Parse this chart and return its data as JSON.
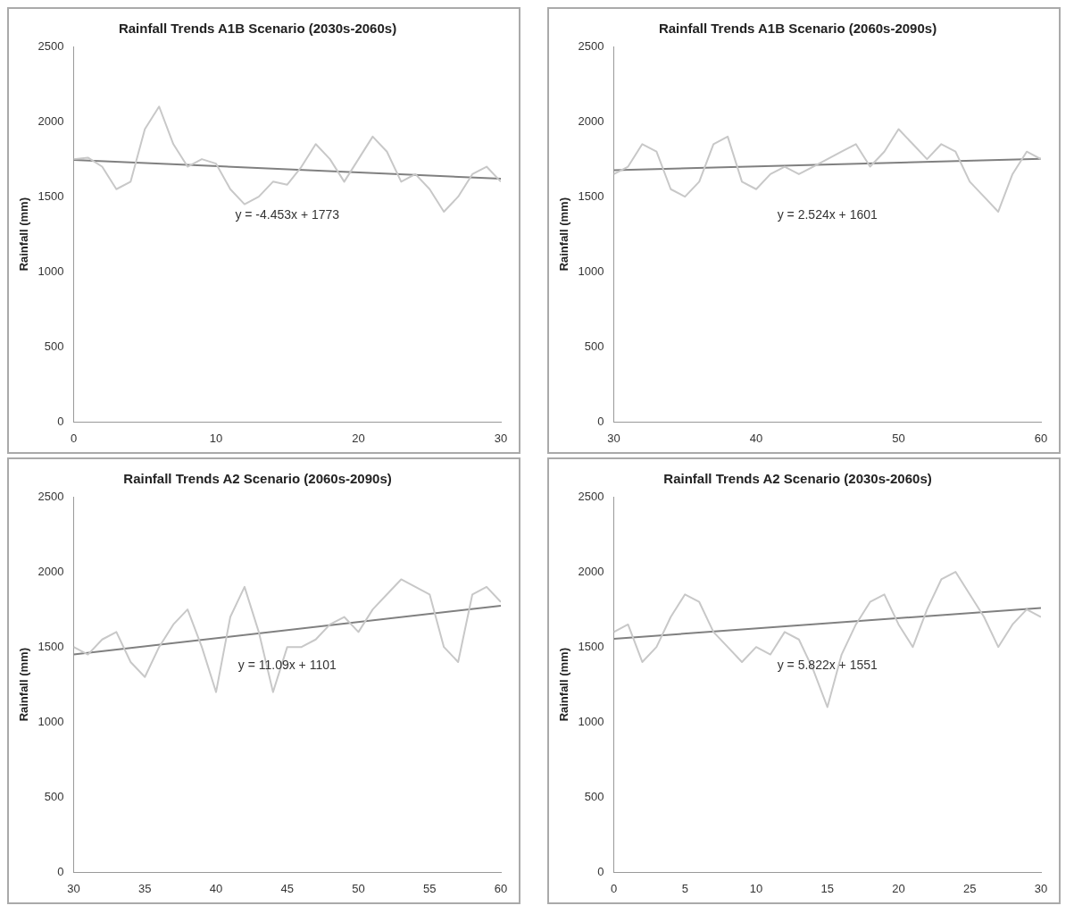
{
  "chart_data": [
    {
      "type": "line",
      "title": "Rainfall Trends A1B Scenario (2030s-2060s)",
      "ylabel": "Rainfall (mm)",
      "x": [
        0,
        1,
        2,
        3,
        4,
        5,
        6,
        7,
        8,
        9,
        10,
        11,
        12,
        13,
        14,
        15,
        16,
        17,
        18,
        19,
        20,
        21,
        22,
        23,
        24,
        25,
        26,
        27,
        28,
        29,
        30
      ],
      "series": [
        {
          "color": "#c8c8c8",
          "values": [
            1750,
            1760,
            1700,
            1550,
            1600,
            1950,
            2100,
            1850,
            1700,
            1750,
            1720,
            1550,
            1450,
            1500,
            1600,
            1580,
            1700,
            1850,
            1750,
            1600,
            1750,
            1900,
            1800,
            1600,
            1650,
            1550,
            1400,
            1500,
            1650,
            1700,
            1600
          ]
        },
        {
          "color": "#808080",
          "x": [
            0,
            30
          ],
          "values": [
            1745,
            1620
          ]
        }
      ],
      "xlim": [
        0,
        30
      ],
      "xticks": [
        0,
        10,
        20,
        30
      ],
      "ylim": [
        0,
        2500
      ],
      "yticks": [
        0,
        500,
        1000,
        1500,
        2000,
        2500
      ],
      "grid": false,
      "legend": false,
      "marker": "none",
      "annotations": [
        "y = -4.453x + 1773"
      ]
    },
    {
      "type": "line",
      "title": "Rainfall Trends A1B Scenario (2060s-2090s)",
      "ylabel": "Rainfall (mm)",
      "x": [
        30,
        31,
        32,
        33,
        34,
        35,
        36,
        37,
        38,
        39,
        40,
        41,
        42,
        43,
        44,
        45,
        46,
        47,
        48,
        49,
        50,
        51,
        52,
        53,
        54,
        55,
        56,
        57,
        58,
        59,
        60
      ],
      "series": [
        {
          "color": "#c8c8c8",
          "values": [
            1650,
            1700,
            1850,
            1800,
            1550,
            1500,
            1600,
            1850,
            1900,
            1600,
            1550,
            1650,
            1700,
            1650,
            1700,
            1750,
            1800,
            1850,
            1700,
            1800,
            1950,
            1850,
            1750,
            1850,
            1800,
            1600,
            1500,
            1400,
            1650,
            1800,
            1750
          ]
        },
        {
          "color": "#808080",
          "x": [
            30,
            60
          ],
          "values": [
            1677,
            1752
          ]
        }
      ],
      "xlim": [
        30,
        60
      ],
      "xticks": [
        30,
        40,
        50,
        60
      ],
      "ylim": [
        0,
        2500
      ],
      "yticks": [
        0,
        500,
        1000,
        1500,
        2000,
        2500
      ],
      "grid": false,
      "legend": false,
      "marker": "none",
      "annotations": [
        "y = 2.524x + 1601"
      ]
    },
    {
      "type": "line",
      "title": "Rainfall Trends A2 Scenario (2060s-2090s)",
      "ylabel": "Rainfall (mm)",
      "x": [
        30,
        31,
        32,
        33,
        34,
        35,
        36,
        37,
        38,
        39,
        40,
        41,
        42,
        43,
        44,
        45,
        46,
        47,
        48,
        49,
        50,
        51,
        52,
        53,
        54,
        55,
        56,
        57,
        58,
        59,
        60
      ],
      "series": [
        {
          "color": "#c8c8c8",
          "values": [
            1500,
            1450,
            1550,
            1600,
            1400,
            1300,
            1500,
            1650,
            1750,
            1500,
            1200,
            1700,
            1900,
            1600,
            1200,
            1500,
            1500,
            1550,
            1650,
            1700,
            1600,
            1750,
            1850,
            1950,
            1900,
            1850,
            1500,
            1400,
            1850,
            1900,
            1800
          ]
        },
        {
          "color": "#808080",
          "x": [
            30,
            60
          ],
          "values": [
            1450,
            1775
          ]
        }
      ],
      "xlim": [
        30,
        60
      ],
      "xticks": [
        30,
        35,
        40,
        45,
        50,
        55,
        60
      ],
      "ylim": [
        0,
        2500
      ],
      "yticks": [
        0,
        500,
        1000,
        1500,
        2000,
        2500
      ],
      "grid": false,
      "legend": false,
      "marker": "none",
      "annotations": [
        "y = 11.09x + 1101"
      ]
    },
    {
      "type": "line",
      "title": "Rainfall Trends A2 Scenario (2030s-2060s)",
      "ylabel": "Rainfall (mm)",
      "x": [
        0,
        1,
        2,
        3,
        4,
        5,
        6,
        7,
        8,
        9,
        10,
        11,
        12,
        13,
        14,
        15,
        16,
        17,
        18,
        19,
        20,
        21,
        22,
        23,
        24,
        25,
        26,
        27,
        28,
        29,
        30
      ],
      "series": [
        {
          "color": "#c8c8c8",
          "values": [
            1600,
            1650,
            1400,
            1500,
            1700,
            1850,
            1800,
            1600,
            1500,
            1400,
            1500,
            1450,
            1600,
            1550,
            1350,
            1100,
            1450,
            1650,
            1800,
            1850,
            1650,
            1500,
            1750,
            1950,
            2000,
            1850,
            1700,
            1500,
            1650,
            1750,
            1700
          ]
        },
        {
          "color": "#808080",
          "x": [
            0,
            30
          ],
          "values": [
            1555,
            1760
          ]
        }
      ],
      "xlim": [
        0,
        30
      ],
      "xticks": [
        0,
        5,
        10,
        15,
        20,
        25,
        30
      ],
      "ylim": [
        0,
        2500
      ],
      "yticks": [
        0,
        500,
        1000,
        1500,
        2000,
        2500
      ],
      "grid": false,
      "legend": false,
      "marker": "none",
      "annotations": [
        "y = 5.822x + 1551"
      ]
    }
  ]
}
